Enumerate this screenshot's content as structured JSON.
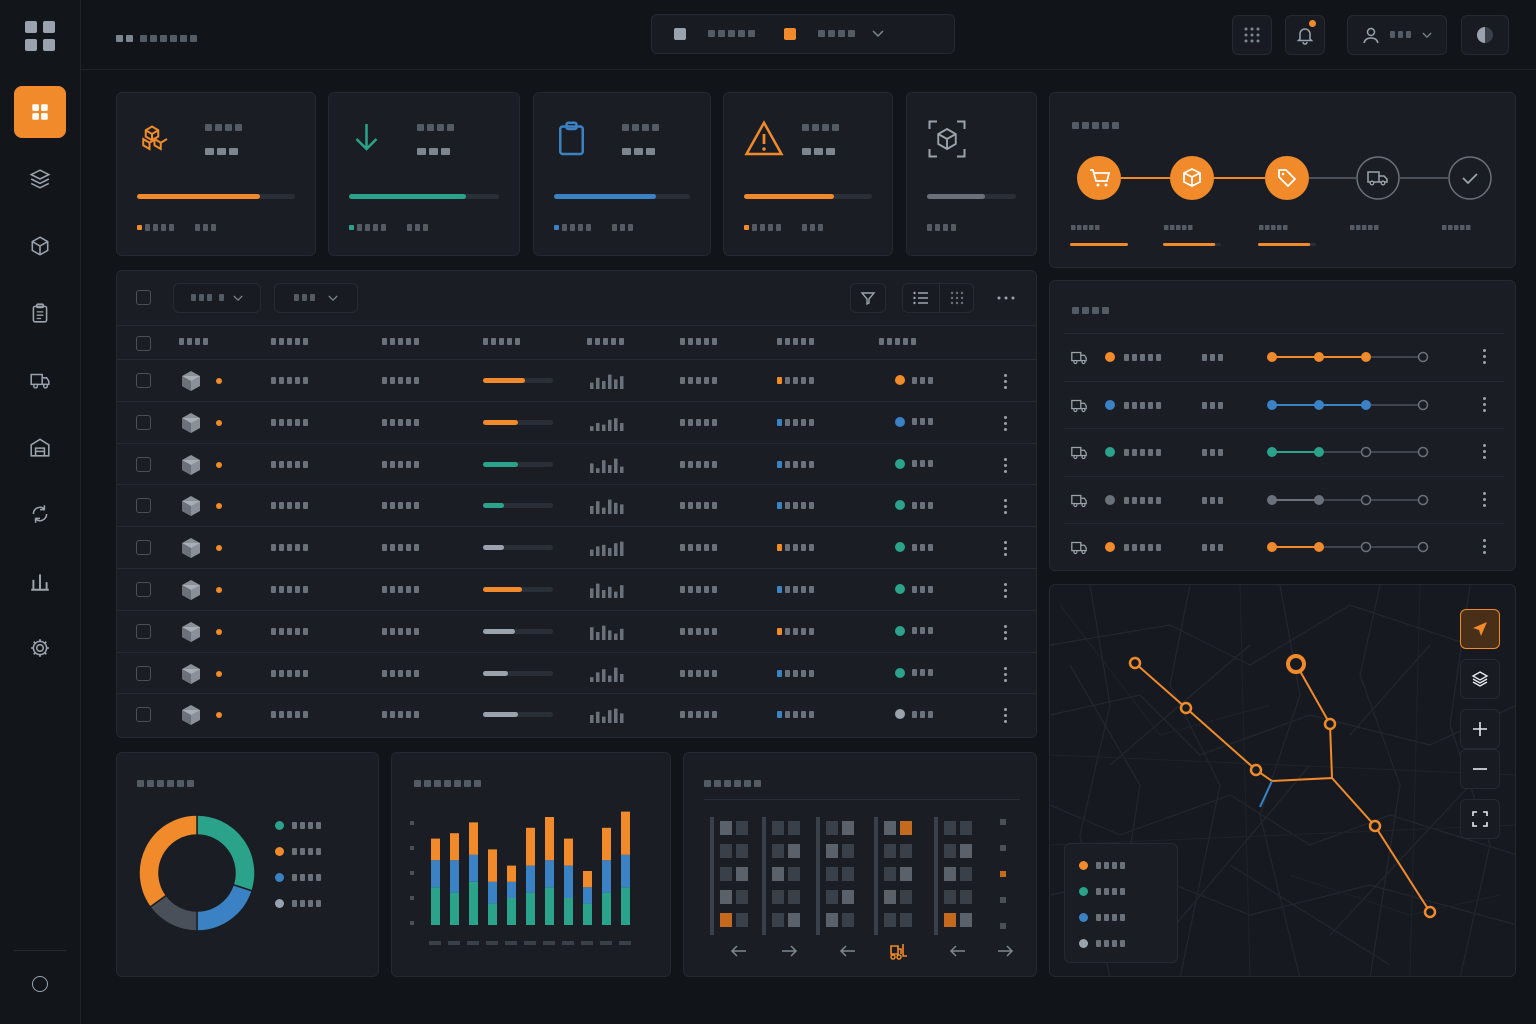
{
  "colors": {
    "accent": "#f08a2a",
    "teal": "#2aa38a",
    "blue": "#3b82c4",
    "gray": "#6b717a",
    "background": "#111419",
    "panel": "#1a1e24"
  },
  "sidebar": {
    "items": [
      {
        "icon": "grid-icon",
        "active": true
      },
      {
        "icon": "layers-icon"
      },
      {
        "icon": "box-icon"
      },
      {
        "icon": "clipboard-icon"
      },
      {
        "icon": "truck-icon"
      },
      {
        "icon": "warehouse-icon"
      },
      {
        "icon": "refresh-icon"
      },
      {
        "icon": "bar-chart-icon"
      },
      {
        "icon": "gear-icon"
      }
    ],
    "bottom_icon": "circle-icon"
  },
  "topbar": {
    "logo_icon": "grid-icon",
    "center_icons": [
      "square-icon",
      "square-accent-icon",
      "chevron-down-icon"
    ],
    "right_icons": [
      "apps-icon",
      "bell-icon",
      "user-icon",
      "theme-toggle-icon"
    ]
  },
  "kpi_cards": [
    {
      "icon": "boxes-icon",
      "color": "#f08a2a",
      "progress": 0.78
    },
    {
      "icon": "arrow-down-icon",
      "color": "#2aa38a",
      "progress": 0.78
    },
    {
      "icon": "clipboard-icon",
      "color": "#3b82c4",
      "progress": 0.75
    },
    {
      "icon": "warning-icon",
      "color": "#f08a2a",
      "progress": 0.7
    },
    {
      "icon": "scan-box-icon",
      "color": "#6b717a",
      "progress": 0.65
    }
  ],
  "pipeline": {
    "steps": [
      {
        "icon": "cart-icon",
        "state": "done",
        "progress": 1.0
      },
      {
        "icon": "package-icon",
        "state": "done",
        "progress": 0.9
      },
      {
        "icon": "tag-icon",
        "state": "done",
        "progress": 0.9
      },
      {
        "icon": "truck-icon",
        "state": "pending",
        "progress": 0
      },
      {
        "icon": "check-icon",
        "state": "pending",
        "progress": 0
      }
    ]
  },
  "table": {
    "toolbar_icons": [
      "filter-icon",
      "list-view-icon",
      "grid-view-icon",
      "more-icon"
    ],
    "rows": [
      {
        "progress": 0.6,
        "progress_color": "#f08a2a",
        "tag_color": "#f08a2a",
        "status_color": "#f08a2a"
      },
      {
        "progress": 0.5,
        "progress_color": "#f08a2a",
        "tag_color": "#3b82c4",
        "status_color": "#3b82c4"
      },
      {
        "progress": 0.5,
        "progress_color": "#2aa38a",
        "tag_color": "#3b82c4",
        "status_color": "#2aa38a"
      },
      {
        "progress": 0.3,
        "progress_color": "#2aa38a",
        "tag_color": "#3b82c4",
        "status_color": "#2aa38a"
      },
      {
        "progress": 0.3,
        "progress_color": "#9aa3ad",
        "tag_color": "#f08a2a",
        "status_color": "#2aa38a"
      },
      {
        "progress": 0.55,
        "progress_color": "#f08a2a",
        "tag_color": "#3b82c4",
        "status_color": "#2aa38a"
      },
      {
        "progress": 0.45,
        "progress_color": "#9aa3ad",
        "tag_color": "#f08a2a",
        "status_color": "#2aa38a"
      },
      {
        "progress": 0.35,
        "progress_color": "#9aa3ad",
        "tag_color": "#3b82c4",
        "status_color": "#2aa38a"
      },
      {
        "progress": 0.5,
        "progress_color": "#9aa3ad",
        "tag_color": "#3b82c4",
        "status_color": "#9aa3ad"
      }
    ]
  },
  "shipments": {
    "rows": [
      {
        "color": "#f08a2a",
        "stage": 3
      },
      {
        "color": "#3b82c4",
        "stage": 3
      },
      {
        "color": "#2aa38a",
        "stage": 2
      },
      {
        "color": "#6b717a",
        "stage": 2
      },
      {
        "color": "#f08a2a",
        "stage": 2
      }
    ]
  },
  "donut": {
    "segments": [
      {
        "color": "#2aa38a",
        "value": 30
      },
      {
        "color": "#3b82c4",
        "value": 20
      },
      {
        "color": "#4a505a",
        "value": 15
      },
      {
        "color": "#f08a2a",
        "value": 35
      }
    ],
    "legend_colors": [
      "#2aa38a",
      "#f08a2a",
      "#3b82c4",
      "#9aa3ad"
    ]
  },
  "bar_chart": {
    "stacks": [
      [
        0.35,
        0.25,
        0.2
      ],
      [
        0.3,
        0.3,
        0.25
      ],
      [
        0.4,
        0.25,
        0.3
      ],
      [
        0.2,
        0.2,
        0.3
      ],
      [
        0.25,
        0.15,
        0.15
      ],
      [
        0.3,
        0.25,
        0.35
      ],
      [
        0.35,
        0.25,
        0.4
      ],
      [
        0.25,
        0.3,
        0.25
      ],
      [
        0.2,
        0.15,
        0.15
      ],
      [
        0.3,
        0.3,
        0.3
      ],
      [
        0.35,
        0.3,
        0.4
      ]
    ]
  },
  "map": {
    "legend_colors": [
      "#f08a2a",
      "#2aa38a",
      "#3b82c4",
      "#9aa3ad"
    ],
    "controls": [
      "navigate-icon",
      "layers-icon",
      "zoom-in-icon",
      "zoom-out-icon",
      "fullscreen-icon"
    ]
  },
  "warehouse": {
    "controls": [
      "arrow-left-icon",
      "arrow-right-icon",
      "arrow-left-icon",
      "forklift-icon",
      "arrow-left-icon",
      "arrow-right-icon"
    ]
  }
}
